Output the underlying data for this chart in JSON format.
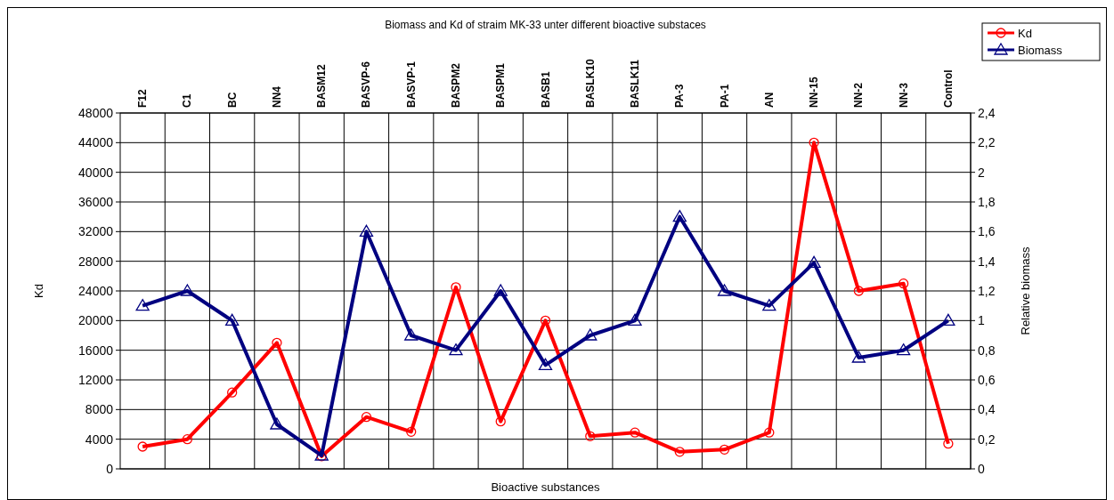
{
  "chart_data": {
    "type": "line",
    "title": "Biomass and Kd of straim MK-33 unter different bioactive substaces",
    "xlabel": "Bioactive substances",
    "ylabel": "Kd",
    "y2label": "Relative biomass",
    "categories": [
      "F12",
      "C1",
      "BC",
      "NN4",
      "BASM12",
      "BASVP-6",
      "BASVP-1",
      "BASPM2",
      "BASPM1",
      "BASB1",
      "BASLK10",
      "BASLK11",
      "PA-3",
      "PA-1",
      "AN",
      "NN-15",
      "NN-2",
      "NN-3",
      "Control"
    ],
    "series": [
      {
        "name": "Kd",
        "color": "#ff0000",
        "marker": "circle",
        "values": [
          3000,
          4000,
          10300,
          17000,
          1700,
          7000,
          5000,
          24500,
          6400,
          20000,
          4400,
          4900,
          2300,
          2600,
          4900,
          44000,
          24000,
          25000,
          3400
        ]
      },
      {
        "name": "Biomass",
        "color": "#000080",
        "marker": "triangle",
        "axis": "y2",
        "values": [
          1.1,
          1.2,
          1.0,
          0.3,
          0.09,
          1.6,
          0.9,
          0.8,
          1.2,
          0.7,
          0.9,
          1.0,
          1.7,
          1.2,
          1.1,
          1.39,
          0.75,
          0.8,
          1.0
        ]
      }
    ],
    "ylim": [
      0,
      48000
    ],
    "yticks": [
      0,
      4000,
      8000,
      12000,
      16000,
      20000,
      24000,
      28000,
      32000,
      36000,
      40000,
      44000,
      48000
    ],
    "y2lim": [
      0,
      2.4
    ],
    "y2ticks": [
      0,
      {
        "value": 0.2,
        "label": "0,2"
      },
      {
        "value": 0.4,
        "label": "0,4"
      },
      {
        "value": 0.6,
        "label": "0,6"
      },
      {
        "value": 0.8,
        "label": "0,8"
      },
      1,
      {
        "value": 1.2,
        "label": "1,2"
      },
      {
        "value": 1.4,
        "label": "1,4"
      },
      {
        "value": 1.6,
        "label": "1,6"
      },
      {
        "value": 1.8,
        "label": "1,8"
      },
      2,
      {
        "value": 2.2,
        "label": "2,2"
      },
      {
        "value": 2.4,
        "label": "2,4"
      }
    ],
    "grid": true,
    "legend": "top right",
    "line_style": "solid"
  }
}
